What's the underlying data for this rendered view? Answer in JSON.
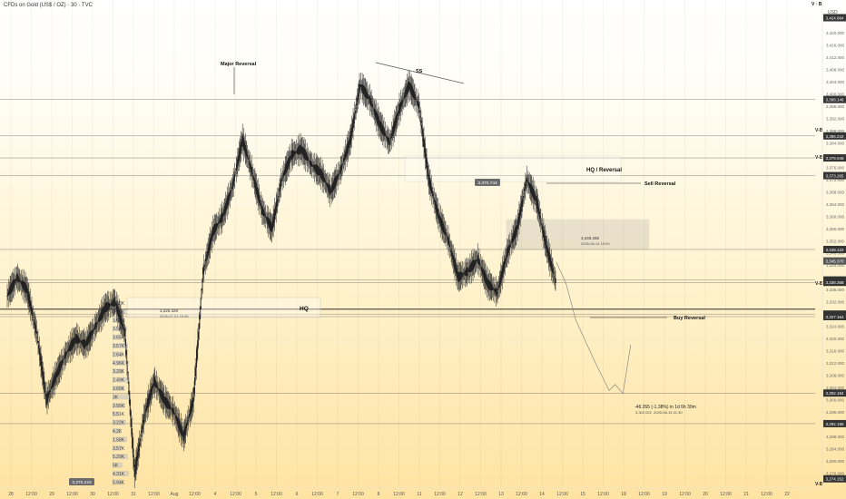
{
  "header": {
    "symbol_title": "CFDs on Gold (US$ / OZ) · 30 · TVC",
    "currency": "USD",
    "corner_label": "V · B"
  },
  "annotations": {
    "major_reversal": "Major Reversal",
    "ss": "SS",
    "hq_reversal": "HQ / Reversal",
    "sell_reversal": "Sell Reversal",
    "hq": "HQ",
    "buy_reversal": "Buy Reversal",
    "vb": "V-B",
    "box1_price": "3,325.328",
    "box1_date": "2025-07-31 15:30",
    "box2_price": "3,348.286",
    "box2_date": "2025-08-14 15:00",
    "projection": "-46.265 (-1.38%) in 1d 6h 30m",
    "projection_price": "3,302.022",
    "projection_date": "2025-08-15 21:30",
    "cursor_price": "3,370.744",
    "left_price": "3,275.224"
  },
  "volume_profile": [
    "3.68K",
    "3.48K",
    "3.63K",
    "3.54K",
    "3.65K",
    "3.57K",
    "2.64K",
    "4.96K",
    "3.29K",
    "2.49K",
    "3.66K",
    "3K",
    "3.55K",
    "5.51K",
    "3.22K",
    "4.2K",
    "1.58K",
    "3.57K",
    "5.29K",
    "5K",
    "4.31K",
    "5.94K"
  ],
  "price_badges": [
    {
      "price": 3424.884,
      "text": "3,424.884",
      "color": "#333333"
    },
    {
      "price": 3398.146,
      "text": "3,398.146",
      "color": "#333333"
    },
    {
      "price": 3386.242,
      "text": "3,386.242",
      "color": "#333333"
    },
    {
      "price": 3379.046,
      "text": "3,379.046",
      "color": "#333333"
    },
    {
      "price": 3373.265,
      "text": "3,373.265",
      "color": "#333333"
    },
    {
      "price": 3349.122,
      "text": "3,349.122",
      "color": "#333333"
    },
    {
      "price": 3345.37,
      "text": "3,345.370",
      "color": "#555555"
    },
    {
      "price": 3339.14,
      "text": "3,339.140",
      "color": "#333333"
    },
    {
      "price": 3338.368,
      "text": "3,338.368",
      "color": "#333333"
    },
    {
      "price": 3328.001,
      "text": "3,328.001",
      "color": "#333333"
    },
    {
      "price": 3327.164,
      "text": "3,327.164",
      "color": "#333333"
    },
    {
      "price": 3302.184,
      "text": "3,302.184",
      "color": "#333333"
    },
    {
      "price": 3292.186,
      "text": "3,292.186",
      "color": "#333333"
    },
    {
      "price": 3274.152,
      "text": "3,274.152",
      "color": "#333333"
    }
  ],
  "colors": {
    "candles": "#222222",
    "lines": "#555555",
    "box": "#9a9a9a"
  },
  "chart_data": {
    "type": "candlestick",
    "symbol": "CFDs on Gold (US$ / OZ)",
    "timeframe": "30",
    "y_ticks": [
      3420,
      3416,
      3412,
      3408,
      3404,
      3400,
      3396,
      3392,
      3388,
      3384,
      3380,
      3376,
      3372,
      3368,
      3364,
      3360,
      3356,
      3352,
      3348,
      3344,
      3340,
      3336,
      3332,
      3328,
      3324,
      3320,
      3316,
      3312,
      3308,
      3304,
      3300,
      3296,
      3292,
      3288,
      3284,
      3280,
      3276
    ],
    "ylim": [
      3272,
      3428
    ],
    "x_labels": [
      "28",
      "12:00",
      "29",
      "12:00",
      "30",
      "12:00",
      "31",
      "12:00",
      "Aug",
      "12:00",
      "4",
      "12:00",
      "5",
      "12:00",
      "6",
      "12:00",
      "7",
      "12:00",
      "8",
      "12:00",
      "11",
      "12:00",
      "12",
      "12:00",
      "13",
      "12:00",
      "14",
      "12:00",
      "15",
      "12:00",
      "18",
      "12:00",
      "19",
      "12:00",
      "20",
      "12:00",
      "21",
      "12:00",
      "22"
    ],
    "horizontal_levels": [
      3398.146,
      3386.242,
      3379.046,
      3373.265,
      3349.122,
      3339.14,
      3338.368,
      3328.001,
      3327.164,
      3302.184,
      3292.186
    ],
    "price_path": [
      [
        0,
        3334
      ],
      [
        0.5,
        3340
      ],
      [
        1.0,
        3336
      ],
      [
        1.5,
        3322
      ],
      [
        2.0,
        3300
      ],
      [
        2.5,
        3308
      ],
      [
        3.0,
        3315
      ],
      [
        3.5,
        3320
      ],
      [
        4.0,
        3318
      ],
      [
        4.5,
        3324
      ],
      [
        5.0,
        3330
      ],
      [
        5.5,
        3332
      ],
      [
        6.0,
        3322
      ],
      [
        6.5,
        3276
      ],
      [
        7.0,
        3295
      ],
      [
        7.5,
        3306
      ],
      [
        8.0,
        3300
      ],
      [
        8.5,
        3296
      ],
      [
        9.0,
        3288
      ],
      [
        9.5,
        3300
      ],
      [
        10.0,
        3342
      ],
      [
        10.5,
        3355
      ],
      [
        11.0,
        3360
      ],
      [
        11.5,
        3370
      ],
      [
        12.0,
        3385
      ],
      [
        12.5,
        3374
      ],
      [
        13.0,
        3362
      ],
      [
        13.5,
        3356
      ],
      [
        14.0,
        3372
      ],
      [
        14.5,
        3380
      ],
      [
        15.0,
        3382
      ],
      [
        15.5,
        3377
      ],
      [
        16.0,
        3374
      ],
      [
        16.5,
        3368
      ],
      [
        17.0,
        3375
      ],
      [
        17.5,
        3385
      ],
      [
        18.0,
        3403
      ],
      [
        18.5,
        3398
      ],
      [
        19.0,
        3390
      ],
      [
        19.5,
        3384
      ],
      [
        20.0,
        3395
      ],
      [
        20.5,
        3403
      ],
      [
        21.0,
        3396
      ],
      [
        21.5,
        3372
      ],
      [
        22.0,
        3360
      ],
      [
        22.5,
        3352
      ],
      [
        23.0,
        3340
      ],
      [
        23.5,
        3342
      ],
      [
        24.0,
        3346
      ],
      [
        24.5,
        3338
      ],
      [
        25.0,
        3335
      ],
      [
        25.5,
        3348
      ],
      [
        26.0,
        3356
      ],
      [
        26.5,
        3372
      ],
      [
        27.0,
        3365
      ],
      [
        27.5,
        3350
      ],
      [
        28.0,
        3338
      ]
    ],
    "projection_path": [
      [
        28.0,
        3345
      ],
      [
        28.5,
        3338
      ],
      [
        29.0,
        3326
      ],
      [
        30.0,
        3312
      ],
      [
        30.7,
        3303
      ],
      [
        31.0,
        3305
      ],
      [
        31.4,
        3302
      ],
      [
        31.8,
        3318
      ]
    ]
  }
}
